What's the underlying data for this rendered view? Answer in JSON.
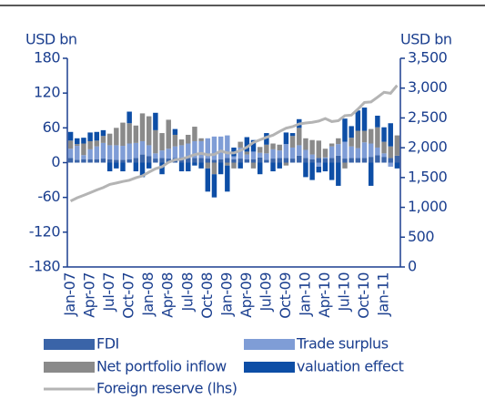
{
  "chart_data": {
    "type": "bar",
    "y_label": "USD bn",
    "y2_label": "USD bn",
    "categories": [
      "Jan-07",
      null,
      null,
      "Apr-07",
      null,
      null,
      "Jul-07",
      null,
      null,
      "Oct-07",
      null,
      null,
      "Jan-08",
      null,
      null,
      "Apr-08",
      null,
      null,
      "Jul-08",
      null,
      null,
      "Oct-08",
      null,
      null,
      "Jan-09",
      null,
      null,
      "Apr-09",
      null,
      null,
      "Jul-09",
      null,
      null,
      "Oct-09",
      null,
      null,
      "Jan-10",
      null,
      null,
      "Apr-10",
      null,
      null,
      "Jul-10",
      null,
      null,
      "Oct-10",
      null,
      null,
      "Jan-11",
      null,
      null
    ],
    "series": [
      {
        "name": "FDI",
        "color": "#3a64a8",
        "values": [
          8,
          5,
          6,
          6,
          6,
          7,
          6,
          5,
          5,
          6,
          8,
          14,
          11,
          7,
          8,
          7,
          8,
          9,
          8,
          8,
          8,
          7,
          5,
          6,
          8,
          6,
          7,
          6,
          6,
          9,
          5,
          7,
          8,
          8,
          7,
          12,
          8,
          6,
          8,
          7,
          8,
          12,
          7,
          8,
          8,
          8,
          10,
          13,
          10,
          8,
          12
        ]
      },
      {
        "name": "Trade surplus",
        "color": "#7f9dd6",
        "values": [
          16,
          24,
          7,
          17,
          22,
          27,
          24,
          25,
          24,
          27,
          26,
          23,
          19,
          9,
          13,
          17,
          20,
          21,
          25,
          29,
          29,
          35,
          40,
          39,
          39,
          5,
          19,
          8,
          13,
          8,
          11,
          16,
          13,
          24,
          19,
          18,
          14,
          8,
          -7,
          2,
          20,
          20,
          29,
          20,
          17,
          27,
          23,
          13,
          6,
          -7,
          0
        ]
      },
      {
        "name": "Net portfolio inflow",
        "color": "#8a8a8a",
        "values": [
          14,
          3,
          20,
          14,
          10,
          12,
          20,
          30,
          40,
          35,
          30,
          48,
          50,
          40,
          30,
          50,
          20,
          10,
          15,
          25,
          5,
          -10,
          -20,
          0,
          -5,
          -10,
          10,
          5,
          -10,
          10,
          15,
          10,
          10,
          -5,
          20,
          30,
          20,
          25,
          30,
          15,
          5,
          10,
          -10,
          15,
          30,
          20,
          25,
          35,
          20,
          20,
          35
        ]
      },
      {
        "name": "valuation effect",
        "color": "#0d4ea6",
        "values": [
          15,
          10,
          10,
          15,
          15,
          10,
          -15,
          -10,
          -15,
          20,
          -15,
          -25,
          -10,
          30,
          -20,
          0,
          10,
          -15,
          -15,
          -5,
          -10,
          -40,
          -40,
          -20,
          -45,
          15,
          -10,
          25,
          20,
          -20,
          20,
          -15,
          -10,
          20,
          5,
          15,
          -25,
          -30,
          -10,
          -15,
          -30,
          -40,
          40,
          20,
          35,
          40,
          -40,
          20,
          25,
          40,
          -10
        ]
      },
      {
        "name": "Foreign reserve (lhs)",
        "color": "#b4b4b4",
        "type": "line",
        "axis": "y2",
        "values": [
          1105,
          1160,
          1202,
          1246,
          1292,
          1332,
          1385,
          1408,
          1434,
          1455,
          1497,
          1528,
          1590,
          1648,
          1682,
          1757,
          1797,
          1809,
          1845,
          1884,
          1906,
          1880,
          1885,
          1946,
          1913,
          1912,
          1954,
          2009,
          2089,
          2132,
          2175,
          2211,
          2273,
          2328,
          2354,
          2399,
          2415,
          2426,
          2447,
          2490,
          2439,
          2454,
          2538,
          2547,
          2648,
          2760,
          2768,
          2847,
          2930,
          2914,
          3045
        ]
      }
    ],
    "ylim": [
      -180,
      180
    ],
    "yticks": [
      -180,
      -120,
      -60,
      0,
      60,
      120,
      180
    ],
    "y2lim": [
      0,
      3500
    ],
    "y2ticks": [
      0,
      500,
      {
        "value": 1000,
        "label": "1,000"
      },
      {
        "value": 1500,
        "label": "1,500"
      },
      {
        "value": 2000,
        "label": "2,000"
      },
      {
        "value": 2500,
        "label": "2,500"
      },
      {
        "value": 3000,
        "label": "3,000"
      },
      {
        "value": 3500,
        "label": "3,500"
      }
    ]
  }
}
